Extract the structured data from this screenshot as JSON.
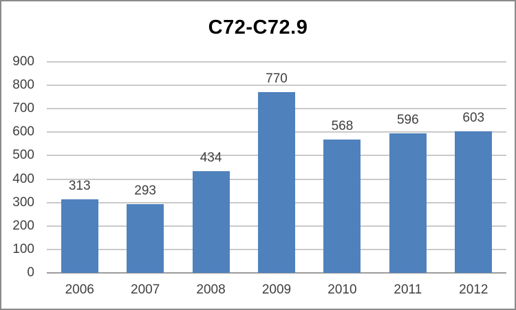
{
  "window": {
    "frame_border_color": "#8a8a8a",
    "background_color": "#ffffff"
  },
  "chart_data": {
    "type": "bar",
    "title": "C72-C72.9",
    "categories": [
      "2006",
      "2007",
      "2008",
      "2009",
      "2010",
      "2011",
      "2012"
    ],
    "values": [
      313,
      293,
      434,
      770,
      568,
      596,
      603
    ],
    "xlabel": "",
    "ylabel": "",
    "ylim": [
      0,
      900
    ],
    "yticks": [
      0,
      100,
      200,
      300,
      400,
      500,
      600,
      700,
      800,
      900
    ],
    "grid": true,
    "legend_position": "none",
    "data_labels": true,
    "bar_color": "#4F81BD",
    "gridline_color": "#c9c9c9",
    "axis_line_color": "#9b9b9b",
    "label_color": "#3f3f3f",
    "title_color": "#000000"
  }
}
